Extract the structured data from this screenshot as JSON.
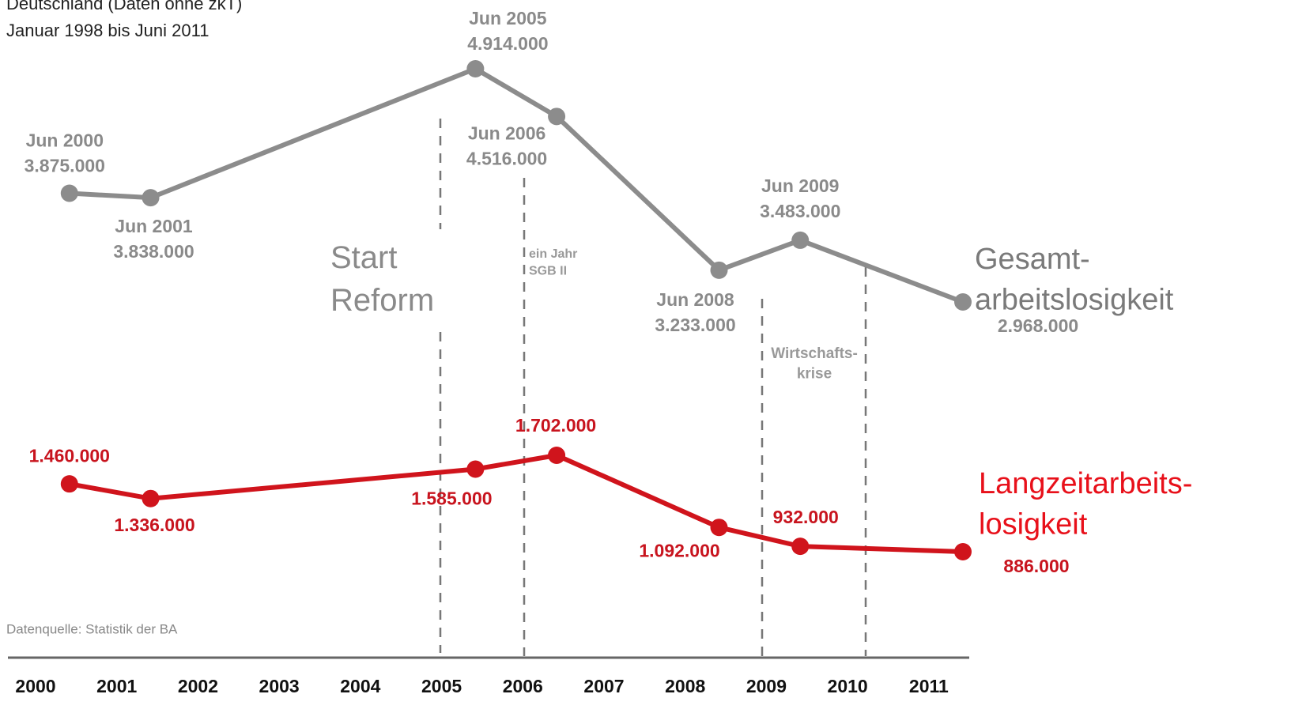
{
  "chart_data": {
    "type": "line",
    "title": "Deutschland (Daten ohne zkT)",
    "subtitle": "Januar 1998 bis Juni 2011",
    "source": "Datenquelle: Statistik der BA",
    "x": [
      "Jun 2000",
      "Jun 2001",
      "Jun 2005",
      "Jun 2006",
      "Jun 2008",
      "Jun 2009",
      null
    ],
    "xlim": [
      2000,
      2011.42
    ],
    "xticks": [
      2000,
      2001,
      2002,
      2003,
      2004,
      2005,
      2006,
      2007,
      2008,
      2009,
      2010,
      2011
    ],
    "series": [
      {
        "name": "Gesamt-\narbeitslosigkeit",
        "color": "#8c8c8c",
        "values": [
          3875000,
          3838000,
          4914000,
          4516000,
          3233000,
          3483000,
          2968000
        ],
        "value_labels": [
          "3.875.000",
          "3.838.000",
          "4.914.000",
          "4.516.000",
          "3.233.000",
          "3.483.000",
          "2.968.000"
        ]
      },
      {
        "name": "Langzeitarbeits-\nlosigkeit",
        "color": "#d0141c",
        "values": [
          1460000,
          1336000,
          1585000,
          1702000,
          1092000,
          932000,
          886000
        ],
        "value_labels": [
          "1.460.000",
          "1.336.000",
          "1.585.000",
          "1.702.000",
          "1.092.000",
          "932.000",
          "886.000"
        ]
      }
    ],
    "annotations": [
      "Start\nReform",
      "ein Jahr\nSGB II",
      "Wirtschafts-\nkrise"
    ]
  }
}
